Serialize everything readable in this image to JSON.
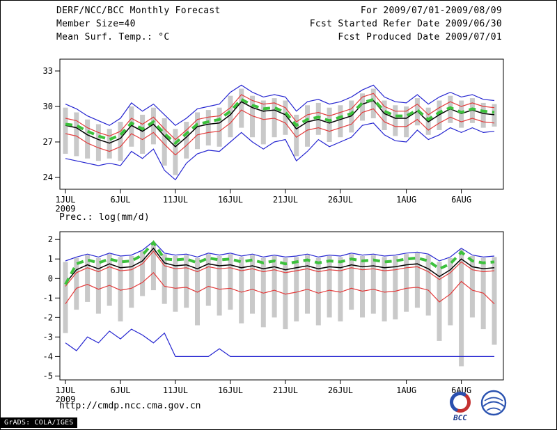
{
  "header": {
    "title": "DERF/NCC/BCC Monthly Forecast",
    "member_size": "Member Size=40",
    "right_lines": [
      "For 2009/07/01-2009/08/09",
      "Fcst Started Refer Date 2009/06/30",
      "Fcst Produced Date 2009/07/01"
    ]
  },
  "footer": {
    "url": "http://cmdp.ncc.cma.gov.cn",
    "grads_credit": "GrADS: COLA/IGES",
    "bcc_caption": "BCC"
  },
  "colors": {
    "blue": "#2424d0",
    "red": "#e23a3a",
    "black": "#000000",
    "green": "#3cc13c",
    "bar": "#c9c9c9"
  },
  "chart_data": [
    {
      "type": "line",
      "name": "surface-temperature",
      "title": "Mean Surf. Temp.: °C",
      "x_year": "2009",
      "n_points": 40,
      "x_tick_days": [
        0,
        5,
        10,
        15,
        20,
        25,
        31,
        36
      ],
      "x_tick_labels": [
        "1JUL",
        "6JUL",
        "11JUL",
        "16JUL",
        "21JUL",
        "26JUL",
        "1AUG",
        "6AUG"
      ],
      "ylim": [
        23,
        34
      ],
      "yticks": [
        24,
        27,
        30,
        33
      ],
      "grid": false,
      "legend": "none",
      "bars": {
        "high": [
          29.9,
          29.5,
          28.9,
          28.5,
          28.1,
          28.7,
          30.0,
          29.3,
          29.9,
          29.0,
          28.1,
          28.7,
          29.5,
          29.7,
          29.9,
          30.9,
          31.5,
          30.9,
          30.5,
          30.7,
          30.5,
          29.3,
          30.1,
          30.3,
          29.9,
          30.1,
          30.5,
          31.1,
          31.5,
          30.5,
          30.1,
          30.0,
          30.7,
          29.9,
          30.5,
          30.9,
          30.5,
          30.7,
          30.3,
          30.2
        ],
        "low": [
          26.0,
          25.8,
          25.6,
          25.4,
          25.6,
          25.4,
          26.6,
          26.0,
          26.8,
          25.0,
          24.2,
          25.6,
          26.4,
          26.7,
          26.6,
          27.4,
          28.2,
          27.4,
          26.8,
          27.4,
          27.6,
          25.8,
          26.6,
          27.6,
          27.0,
          27.4,
          27.8,
          28.8,
          29.0,
          28.0,
          27.5,
          27.4,
          28.4,
          27.6,
          28.0,
          28.6,
          28.2,
          28.6,
          28.2,
          28.3
        ]
      },
      "series": [
        {
          "name": "ensemble-max",
          "color": "blue",
          "width": 1.2,
          "values": [
            30.2,
            29.8,
            29.2,
            28.8,
            28.4,
            29.0,
            30.3,
            29.6,
            30.2,
            29.3,
            28.4,
            29.0,
            29.8,
            30.0,
            30.2,
            31.2,
            31.8,
            31.2,
            30.8,
            31.0,
            30.8,
            29.6,
            30.4,
            30.6,
            30.2,
            30.4,
            30.8,
            31.4,
            31.8,
            30.8,
            30.4,
            30.3,
            31.0,
            30.2,
            30.8,
            31.2,
            30.8,
            31.0,
            30.6,
            30.5
          ]
        },
        {
          "name": "ensemble-min",
          "color": "blue",
          "width": 1.2,
          "values": [
            25.6,
            25.4,
            25.2,
            25.0,
            25.2,
            25.0,
            26.2,
            25.6,
            26.4,
            24.6,
            23.8,
            25.2,
            26.0,
            26.3,
            26.2,
            27.0,
            27.8,
            27.0,
            26.4,
            27.0,
            27.2,
            25.4,
            26.2,
            27.2,
            26.6,
            27.0,
            27.4,
            28.4,
            28.6,
            27.6,
            27.1,
            27.0,
            28.0,
            27.2,
            27.6,
            28.2,
            27.8,
            28.2,
            27.8,
            27.9
          ]
        },
        {
          "name": "spread-upper",
          "color": "red",
          "width": 1.2,
          "values": [
            29.0,
            28.8,
            28.2,
            27.8,
            27.5,
            27.9,
            29.0,
            28.5,
            29.1,
            28.1,
            27.2,
            28.0,
            28.9,
            29.1,
            29.2,
            29.9,
            31.0,
            30.5,
            30.2,
            30.3,
            29.9,
            28.7,
            29.3,
            29.5,
            29.2,
            29.5,
            29.8,
            30.8,
            31.1,
            30.0,
            29.6,
            29.6,
            30.2,
            29.3,
            29.9,
            30.4,
            30.0,
            30.3,
            30.0,
            29.9
          ]
        },
        {
          "name": "spread-lower",
          "color": "red",
          "width": 1.2,
          "values": [
            27.7,
            27.5,
            26.9,
            26.5,
            26.2,
            26.6,
            27.7,
            27.2,
            27.8,
            26.8,
            25.9,
            26.7,
            27.6,
            27.8,
            27.9,
            28.6,
            29.7,
            29.2,
            28.9,
            29.0,
            28.6,
            27.4,
            28.0,
            28.2,
            27.9,
            28.2,
            28.5,
            29.5,
            29.8,
            28.7,
            28.3,
            28.3,
            28.9,
            28.0,
            28.6,
            29.1,
            28.7,
            29.0,
            28.7,
            28.6
          ]
        },
        {
          "name": "ensemble-mean",
          "color": "black",
          "width": 1.5,
          "values": [
            28.4,
            28.2,
            27.6,
            27.2,
            26.9,
            27.3,
            28.4,
            27.9,
            28.5,
            27.5,
            26.6,
            27.4,
            28.3,
            28.5,
            28.6,
            29.3,
            30.4,
            29.9,
            29.6,
            29.7,
            29.3,
            28.1,
            28.7,
            28.9,
            28.6,
            28.9,
            29.2,
            30.2,
            30.5,
            29.4,
            29.0,
            29.0,
            29.6,
            28.7,
            29.3,
            29.8,
            29.4,
            29.7,
            29.4,
            29.3
          ]
        },
        {
          "name": "reference-dashed",
          "color": "green",
          "width": 4,
          "dashed": true,
          "values": [
            28.5,
            28.4,
            27.9,
            27.5,
            27.2,
            27.6,
            28.6,
            28.1,
            28.7,
            27.7,
            26.9,
            27.7,
            28.5,
            28.7,
            28.9,
            29.6,
            30.6,
            30.1,
            29.8,
            29.9,
            29.5,
            28.4,
            28.9,
            29.1,
            28.8,
            29.1,
            29.4,
            30.3,
            30.6,
            29.6,
            29.2,
            29.2,
            29.7,
            28.9,
            29.5,
            29.9,
            29.5,
            29.8,
            29.6,
            29.5
          ]
        }
      ]
    },
    {
      "type": "line",
      "name": "precipitation",
      "title": "Prec.: log(mm/d)",
      "x_year": "2009",
      "n_points": 40,
      "x_tick_days": [
        0,
        5,
        10,
        15,
        20,
        25,
        31,
        36
      ],
      "x_tick_labels": [
        "1JUL",
        "6JUL",
        "11JUL",
        "16JUL",
        "21JUL",
        "26JUL",
        "1AUG",
        "6AUG"
      ],
      "ylim": [
        -5.2,
        2.4
      ],
      "yticks": [
        -5,
        -4,
        -3,
        -2,
        -1,
        0,
        1,
        2
      ],
      "grid": false,
      "legend": "none",
      "bars": {
        "high": [
          0.85,
          1.05,
          1.2,
          1.05,
          1.25,
          1.1,
          1.15,
          1.4,
          1.85,
          1.25,
          1.15,
          1.2,
          1.05,
          1.25,
          1.15,
          1.25,
          1.1,
          1.2,
          1.05,
          1.15,
          1.05,
          1.1,
          1.2,
          1.05,
          1.15,
          1.1,
          1.25,
          1.15,
          1.2,
          1.1,
          1.15,
          1.25,
          1.3,
          1.2,
          0.85,
          1.05,
          1.5,
          1.15,
          1.05,
          1.1
        ],
        "low": [
          -2.8,
          -1.6,
          -1.2,
          -1.8,
          -1.4,
          -2.2,
          -1.5,
          -0.9,
          -0.6,
          -1.3,
          -1.7,
          -1.5,
          -2.4,
          -1.4,
          -1.9,
          -1.6,
          -2.3,
          -1.8,
          -2.5,
          -2.0,
          -2.6,
          -2.2,
          -1.8,
          -2.4,
          -2.0,
          -2.2,
          -1.6,
          -2.0,
          -1.8,
          -2.2,
          -2.1,
          -1.7,
          -1.5,
          -1.9,
          -3.2,
          -2.4,
          -4.5,
          -2.0,
          -2.6,
          -3.4
        ]
      },
      "series": [
        {
          "name": "ensemble-max",
          "color": "blue",
          "width": 1.2,
          "values": [
            0.9,
            1.1,
            1.25,
            1.1,
            1.3,
            1.15,
            1.2,
            1.45,
            1.9,
            1.3,
            1.2,
            1.25,
            1.1,
            1.3,
            1.2,
            1.3,
            1.15,
            1.25,
            1.1,
            1.2,
            1.1,
            1.15,
            1.25,
            1.1,
            1.2,
            1.15,
            1.3,
            1.2,
            1.25,
            1.15,
            1.2,
            1.3,
            1.35,
            1.25,
            0.9,
            1.1,
            1.55,
            1.2,
            1.1,
            1.15
          ]
        },
        {
          "name": "ensemble-min",
          "color": "blue",
          "width": 1.2,
          "values": [
            -3.3,
            -3.7,
            -3.0,
            -3.3,
            -2.7,
            -3.1,
            -2.6,
            -2.9,
            -3.3,
            -2.8,
            -4.0,
            -4.0,
            -4.0,
            -4.0,
            -3.6,
            -4.0,
            -4.0,
            -4.0,
            -4.0,
            -4.0,
            -4.0,
            -4.0,
            -4.0,
            -4.0,
            -4.0,
            -4.0,
            -4.0,
            -4.0,
            -4.0,
            -4.0,
            -4.0,
            -4.0,
            -4.0,
            -4.0,
            -4.0,
            -4.0,
            -4.0,
            -4.0,
            -4.0,
            -4.0
          ]
        },
        {
          "name": "spread-upper",
          "color": "red",
          "width": 1.2,
          "values": [
            -0.4,
            0.3,
            0.55,
            0.35,
            0.6,
            0.4,
            0.45,
            0.75,
            1.4,
            0.65,
            0.5,
            0.55,
            0.35,
            0.6,
            0.5,
            0.55,
            0.4,
            0.5,
            0.35,
            0.45,
            0.3,
            0.4,
            0.5,
            0.35,
            0.45,
            0.4,
            0.55,
            0.45,
            0.5,
            0.4,
            0.45,
            0.55,
            0.6,
            0.35,
            -0.05,
            0.3,
            0.85,
            0.45,
            0.35,
            0.4
          ]
        },
        {
          "name": "spread-lower",
          "color": "red",
          "width": 1.2,
          "values": [
            -1.3,
            -0.5,
            -0.3,
            -0.55,
            -0.35,
            -0.6,
            -0.5,
            -0.2,
            0.3,
            -0.4,
            -0.5,
            -0.45,
            -0.7,
            -0.4,
            -0.55,
            -0.5,
            -0.7,
            -0.55,
            -0.75,
            -0.6,
            -0.8,
            -0.7,
            -0.55,
            -0.75,
            -0.6,
            -0.7,
            -0.5,
            -0.65,
            -0.55,
            -0.7,
            -0.65,
            -0.5,
            -0.45,
            -0.6,
            -1.2,
            -0.8,
            -0.15,
            -0.6,
            -0.75,
            -1.3
          ]
        },
        {
          "name": "ensemble-mean",
          "color": "black",
          "width": 1.5,
          "values": [
            -0.25,
            0.45,
            0.7,
            0.5,
            0.75,
            0.55,
            0.6,
            0.9,
            1.55,
            0.8,
            0.65,
            0.7,
            0.5,
            0.75,
            0.65,
            0.7,
            0.55,
            0.65,
            0.5,
            0.6,
            0.45,
            0.55,
            0.65,
            0.5,
            0.6,
            0.55,
            0.7,
            0.6,
            0.65,
            0.55,
            0.6,
            0.7,
            0.75,
            0.5,
            0.1,
            0.45,
            1.0,
            0.6,
            0.5,
            0.55
          ]
        },
        {
          "name": "reference-dashed",
          "color": "green",
          "width": 4,
          "dashed": true,
          "values": [
            -0.3,
            0.75,
            0.95,
            0.8,
            1.0,
            0.85,
            0.9,
            1.2,
            1.85,
            1.0,
            0.95,
            1.0,
            0.8,
            1.05,
            0.95,
            1.0,
            0.85,
            0.95,
            0.8,
            0.9,
            0.75,
            0.85,
            0.95,
            0.8,
            0.9,
            0.85,
            1.0,
            0.9,
            0.95,
            0.85,
            0.9,
            1.0,
            1.05,
            0.9,
            0.5,
            0.75,
            1.35,
            0.9,
            0.8,
            0.85
          ]
        }
      ]
    }
  ]
}
